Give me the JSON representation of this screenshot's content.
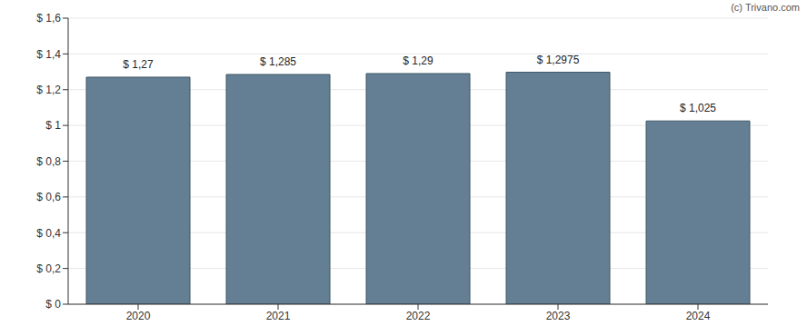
{
  "chart_data": {
    "type": "bar",
    "categories": [
      "2020",
      "2021",
      "2022",
      "2023",
      "2024"
    ],
    "values": [
      1.27,
      1.285,
      1.29,
      1.2975,
      1.025
    ],
    "value_labels": [
      "$ 1,27",
      "$ 1,285",
      "$ 1,29",
      "$ 1,2975",
      "$ 1,025"
    ],
    "data_labels": true,
    "color": "#647f93",
    "ylim": [
      0,
      1.6
    ],
    "yticks": [
      {
        "value": 0,
        "label": "$ 0"
      },
      {
        "value": 0.2,
        "label": "$ 0,2"
      },
      {
        "value": 0.4,
        "label": "$ 0,4"
      },
      {
        "value": 0.6,
        "label": "$ 0,6"
      },
      {
        "value": 0.8,
        "label": "$ 0,8"
      },
      {
        "value": 1,
        "label": "$ 1"
      },
      {
        "value": 1.2,
        "label": "$ 1,2"
      },
      {
        "value": 1.4,
        "label": "$ 1,4"
      },
      {
        "value": 1.6,
        "label": "$ 1,6"
      }
    ],
    "grid": true,
    "annotations": [
      "(c) Trivano.com"
    ]
  }
}
